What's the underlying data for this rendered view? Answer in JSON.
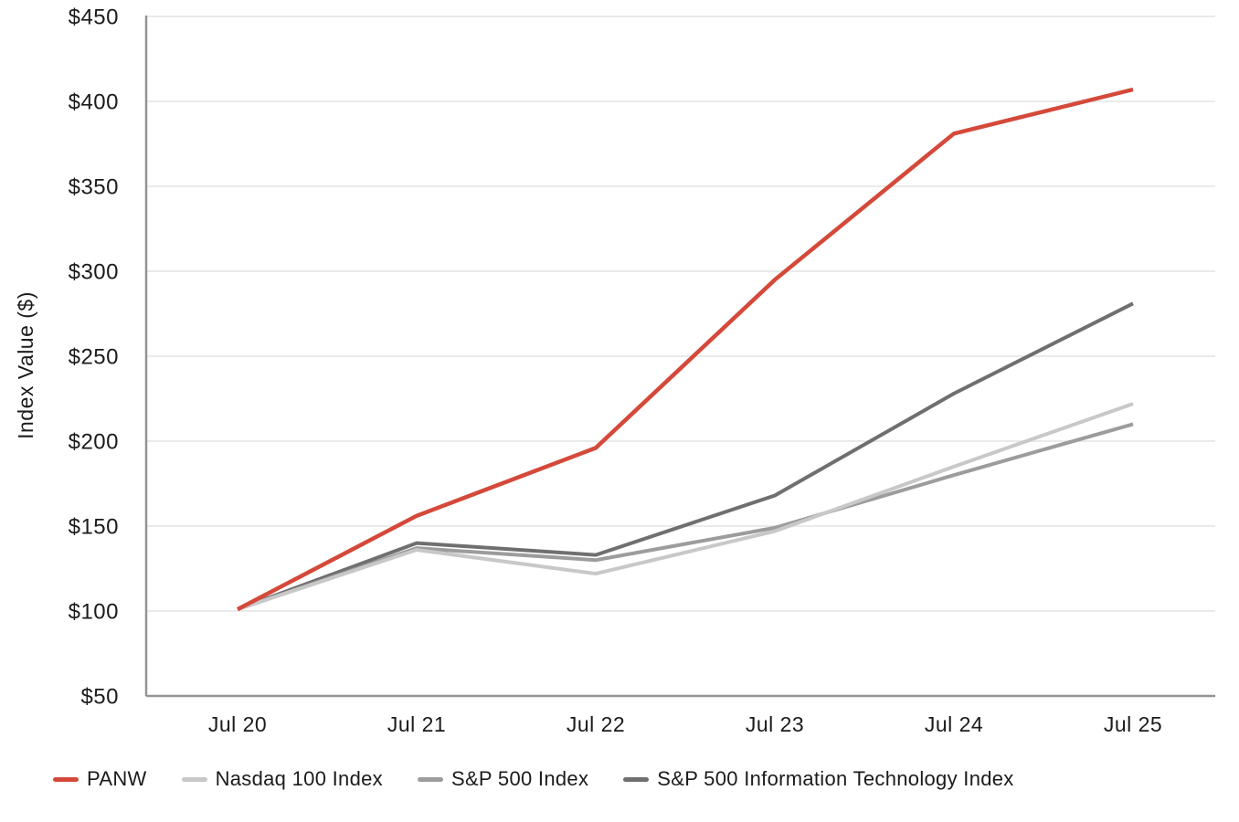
{
  "chart_data": {
    "type": "line",
    "title": "",
    "xlabel": "",
    "ylabel": "Index Value ($)",
    "categories": [
      "Jul 20",
      "Jul 21",
      "Jul 22",
      "Jul 23",
      "Jul 24",
      "Jul 25"
    ],
    "series": [
      {
        "name": "PANW",
        "color": "#D4493A",
        "stroke_width": 4.5,
        "values": [
          101,
          156,
          196,
          295,
          381,
          407
        ]
      },
      {
        "name": "Nasdaq 100 Index",
        "color": "#C8C8C8",
        "stroke_width": 4,
        "values": [
          101,
          136,
          122,
          147,
          185,
          222
        ]
      },
      {
        "name": "S&P 500 Index",
        "color": "#9C9C9C",
        "stroke_width": 4,
        "values": [
          101,
          137,
          130,
          149,
          180,
          210
        ]
      },
      {
        "name": "S&P 500 Information Technology Index",
        "color": "#6F6F6F",
        "stroke_width": 4,
        "values": [
          101,
          140,
          133,
          168,
          228,
          281
        ]
      }
    ],
    "ylim": [
      50,
      450
    ],
    "y_tick_step": 50,
    "y_tick_prefix": "$",
    "grid": "horizontal",
    "legend_position": "bottom"
  },
  "colors": {
    "background": "#FFFFFF",
    "gridline": "#EAEAEA",
    "axis": "#949494",
    "text": "#1B1B1B"
  }
}
